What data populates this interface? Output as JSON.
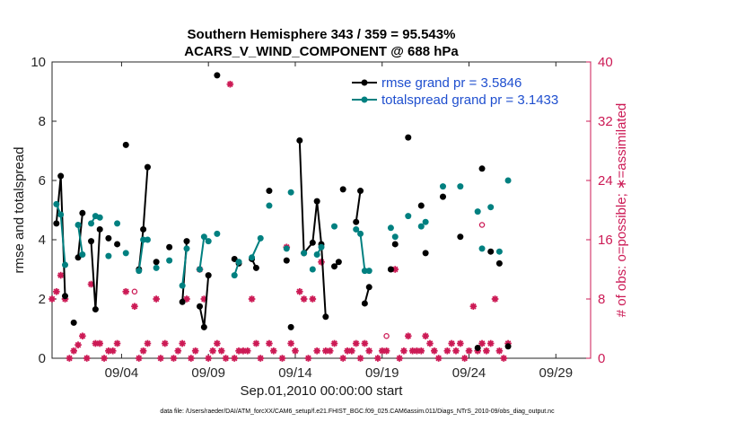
{
  "chart_data": {
    "type": "scatter",
    "title": [
      "Southern Hemisphere 343 / 359 = 95.543%",
      "ACARS_V_WIND_COMPONENT @ 688 hPa"
    ],
    "xlabel": "Sep.01,2010 00:00:00 start",
    "ylabel_left": "rmse and totalspread",
    "ylabel_right": "# of obs: o=possible; ∗=assimilated",
    "footer": "data file: /Users/raeder/DAI/ATM_forcXX/CAM6_setup/f.e21.FHIST_BGC.f09_025.CAM6assim.011/Diags_NTrS_2010-09/obs_diag_output.nc",
    "xlim": [
      0,
      31
    ],
    "ylim_left": [
      0,
      10
    ],
    "ylim_right": [
      0,
      40
    ],
    "x_ticks": [
      {
        "value": 4,
        "label": "09/04"
      },
      {
        "value": 9,
        "label": "09/09"
      },
      {
        "value": 14,
        "label": "09/14"
      },
      {
        "value": 19,
        "label": "09/19"
      },
      {
        "value": 24,
        "label": "09/24"
      },
      {
        "value": 29,
        "label": "09/29"
      }
    ],
    "y_left_ticks": [
      "0",
      "2",
      "4",
      "6",
      "8",
      "10"
    ],
    "y_left_tick_values": [
      0,
      2,
      4,
      6,
      8,
      10
    ],
    "y_right_ticks": [
      "0",
      "8",
      "16",
      "24",
      "32",
      "40"
    ],
    "y_right_tick_values": [
      0,
      8,
      16,
      24,
      32,
      40
    ],
    "legend": [
      {
        "label": "rmse grand pr = 3.5846",
        "color": "#000000"
      },
      {
        "label": "totalspread grand pr = 3.1433",
        "color": "#008080"
      }
    ],
    "legend_text_color": "#1f4fcf",
    "right_axis_color": "#cc1a55",
    "series": [
      {
        "name": "rmse",
        "color": "#000000",
        "style": "line-markers",
        "points": [
          [
            0.25,
            4.55
          ],
          [
            0.5,
            6.15
          ],
          [
            0.75,
            2.1
          ],
          [
            1.25,
            1.2
          ],
          [
            1.5,
            3.4
          ],
          [
            1.75,
            4.9
          ],
          [
            2.25,
            3.95
          ],
          [
            2.5,
            1.65
          ],
          [
            2.75,
            4.35
          ],
          [
            3.25,
            4.05
          ],
          [
            3.75,
            3.85
          ],
          [
            4.25,
            7.2
          ],
          [
            5,
            3.0
          ],
          [
            5.25,
            4.35
          ],
          [
            5.5,
            6.45
          ],
          [
            6,
            3.25
          ],
          [
            6.75,
            3.75
          ],
          [
            7.5,
            1.9
          ],
          [
            7.75,
            3.95
          ],
          [
            8.5,
            1.75
          ],
          [
            8.75,
            1.05
          ],
          [
            9,
            2.8
          ],
          [
            9.5,
            9.55
          ],
          [
            10.5,
            3.35
          ],
          [
            10.75,
            3.2
          ],
          [
            11.5,
            3.35
          ],
          [
            11.75,
            3.05
          ],
          [
            12.5,
            5.65
          ],
          [
            13.5,
            3.3
          ],
          [
            13.75,
            1.05
          ],
          [
            14.25,
            7.35
          ],
          [
            14.5,
            3.55
          ],
          [
            15,
            3.9
          ],
          [
            15.25,
            5.3
          ],
          [
            15.5,
            3.85
          ],
          [
            15.75,
            1.4
          ],
          [
            16.25,
            3.1
          ],
          [
            16.5,
            3.25
          ],
          [
            16.75,
            5.7
          ],
          [
            17.5,
            4.6
          ],
          [
            17.75,
            5.65
          ],
          [
            18,
            1.85
          ],
          [
            18.25,
            2.4
          ],
          [
            19.5,
            3.0
          ],
          [
            19.75,
            3.85
          ],
          [
            20.5,
            7.45
          ],
          [
            21.25,
            5.15
          ],
          [
            21.5,
            3.55
          ],
          [
            22.5,
            5.45
          ],
          [
            23.5,
            4.1
          ],
          [
            24.5,
            0.35
          ],
          [
            24.75,
            6.4
          ],
          [
            25.25,
            3.6
          ],
          [
            25.75,
            3.2
          ],
          [
            26.25,
            0.4
          ]
        ],
        "segments": [
          [
            0,
            1,
            2
          ],
          [
            4,
            5
          ],
          [
            6,
            7,
            8
          ],
          [
            11
          ],
          [
            12,
            13,
            14
          ],
          [
            17,
            18
          ],
          [
            19,
            20,
            21
          ],
          [
            23,
            24
          ],
          [
            25,
            26
          ],
          [
            30,
            31,
            32,
            33,
            34,
            35
          ],
          [
            36,
            37
          ],
          [
            39,
            40
          ],
          [
            41,
            42
          ]
        ]
      },
      {
        "name": "totalspread",
        "color": "#008080",
        "style": "line-markers",
        "points": [
          [
            0.25,
            5.2
          ],
          [
            0.5,
            4.85
          ],
          [
            0.75,
            3.15
          ],
          [
            1.5,
            4.5
          ],
          [
            1.75,
            3.5
          ],
          [
            2.25,
            4.55
          ],
          [
            2.5,
            4.8
          ],
          [
            2.75,
            4.75
          ],
          [
            3.25,
            3.45
          ],
          [
            3.75,
            4.55
          ],
          [
            4.25,
            3.55
          ],
          [
            5,
            2.95
          ],
          [
            5.25,
            4.0
          ],
          [
            5.5,
            4.0
          ],
          [
            6,
            3.05
          ],
          [
            6.75,
            3.3
          ],
          [
            7.5,
            2.45
          ],
          [
            7.75,
            3.7
          ],
          [
            8.5,
            3.0
          ],
          [
            8.75,
            4.1
          ],
          [
            9,
            3.95
          ],
          [
            9.5,
            4.2
          ],
          [
            10.5,
            2.8
          ],
          [
            10.75,
            3.25
          ],
          [
            11.5,
            3.4
          ],
          [
            12,
            4.05
          ],
          [
            12.5,
            5.15
          ],
          [
            13.5,
            3.7
          ],
          [
            13.75,
            5.6
          ],
          [
            14.5,
            3.55
          ],
          [
            15,
            3.0
          ],
          [
            15.25,
            3.5
          ],
          [
            15.5,
            3.75
          ],
          [
            16.25,
            4.45
          ],
          [
            17.5,
            4.35
          ],
          [
            17.75,
            4.2
          ],
          [
            18,
            2.95
          ],
          [
            18.25,
            2.95
          ],
          [
            19.5,
            4.4
          ],
          [
            19.75,
            4.1
          ],
          [
            20.5,
            4.8
          ],
          [
            21.25,
            4.45
          ],
          [
            21.5,
            4.6
          ],
          [
            22.5,
            5.8
          ],
          [
            23.5,
            5.8
          ],
          [
            24.5,
            4.95
          ],
          [
            24.75,
            3.7
          ],
          [
            25.25,
            5.1
          ],
          [
            25.75,
            3.6
          ],
          [
            26.25,
            6.0
          ]
        ],
        "segments": [
          [
            0,
            1,
            2
          ],
          [
            3,
            4
          ],
          [
            5,
            6,
            7
          ],
          [
            11,
            12,
            13
          ],
          [
            16,
            17
          ],
          [
            18,
            19,
            20
          ],
          [
            22,
            23
          ],
          [
            24,
            25
          ],
          [
            31,
            32
          ],
          [
            34,
            35,
            36
          ]
        ]
      },
      {
        "name": "obs assimilated",
        "color": "#cc1a55",
        "marker": "*",
        "axis": "right",
        "points": [
          [
            0,
            8.0
          ],
          [
            0.25,
            9.0
          ],
          [
            0.5,
            11.2
          ],
          [
            0.75,
            8.0
          ],
          [
            1.0,
            0.0
          ],
          [
            1.25,
            1.0
          ],
          [
            1.5,
            1.8
          ],
          [
            1.75,
            3.0
          ],
          [
            2.0,
            0.0
          ],
          [
            2.25,
            10.0
          ],
          [
            2.5,
            2.0
          ],
          [
            2.75,
            2.0
          ],
          [
            3.0,
            0.0
          ],
          [
            3.25,
            1.0
          ],
          [
            3.5,
            1.0
          ],
          [
            3.75,
            2.0
          ],
          [
            4.25,
            9.0
          ],
          [
            4.75,
            7.0
          ],
          [
            5,
            0.0
          ],
          [
            5.25,
            1.0
          ],
          [
            5.5,
            2.0
          ],
          [
            6,
            8.0
          ],
          [
            6.25,
            0.0
          ],
          [
            6.5,
            2.0
          ],
          [
            7.0,
            0.0
          ],
          [
            7.25,
            1.0
          ],
          [
            7.5,
            2.0
          ],
          [
            7.75,
            8.0
          ],
          [
            8,
            0.0
          ],
          [
            8.25,
            1.0
          ],
          [
            8.5,
            12.0
          ],
          [
            8.75,
            8.0
          ],
          [
            9,
            0.0
          ],
          [
            9.25,
            1.0
          ],
          [
            9.5,
            2.0
          ],
          [
            9.75,
            1.0
          ],
          [
            10,
            0.0
          ],
          [
            10.25,
            37.0
          ],
          [
            10.5,
            0.0
          ],
          [
            10.75,
            1.0
          ],
          [
            11,
            1.0
          ],
          [
            11.25,
            1.0
          ],
          [
            11.5,
            8.0
          ],
          [
            11.75,
            2.0
          ],
          [
            12,
            0.0
          ],
          [
            12.5,
            2.0
          ],
          [
            12.75,
            1.0
          ],
          [
            13.25,
            0.0
          ],
          [
            13.5,
            15.0
          ],
          [
            13.75,
            2.0
          ],
          [
            14,
            1.0
          ],
          [
            14.25,
            9.0
          ],
          [
            14.5,
            8.0
          ],
          [
            14.75,
            0.0
          ],
          [
            15,
            8.0
          ],
          [
            15.25,
            1.0
          ],
          [
            15.5,
            13.0
          ],
          [
            15.75,
            1.0
          ],
          [
            16,
            1.0
          ],
          [
            16.25,
            2.0
          ],
          [
            16.75,
            0.0
          ],
          [
            17,
            1.0
          ],
          [
            17.25,
            1.0
          ],
          [
            17.5,
            2.0
          ],
          [
            17.75,
            0.0
          ],
          [
            18,
            2.0
          ],
          [
            18.25,
            1.0
          ],
          [
            18.75,
            0.0
          ],
          [
            19,
            1.0
          ],
          [
            19.25,
            1.0
          ],
          [
            19.75,
            12.0
          ],
          [
            20,
            0.0
          ],
          [
            20.25,
            1.0
          ],
          [
            20.5,
            3.0
          ],
          [
            20.75,
            1.0
          ],
          [
            21,
            1.0
          ],
          [
            21.25,
            1.0
          ],
          [
            21.5,
            3.0
          ],
          [
            21.75,
            2.0
          ],
          [
            22,
            1.0
          ],
          [
            22.25,
            0.0
          ],
          [
            22.75,
            1.0
          ],
          [
            23.0,
            2.0
          ],
          [
            23.25,
            1.0
          ],
          [
            23.5,
            2.0
          ],
          [
            23.75,
            0.0
          ],
          [
            24,
            1.0
          ],
          [
            24.25,
            7.0
          ],
          [
            24.5,
            1.0
          ],
          [
            24.75,
            2.0
          ],
          [
            25,
            1.0
          ],
          [
            25.25,
            2.0
          ],
          [
            25.5,
            8.0
          ],
          [
            25.75,
            1.0
          ],
          [
            26,
            0.0
          ],
          [
            26.25,
            2.0
          ]
        ]
      },
      {
        "name": "obs possible",
        "color": "#cc1a55",
        "marker": "o",
        "axis": "right",
        "points": [
          [
            4.75,
            9.0
          ],
          [
            19.25,
            3.0
          ],
          [
            24.75,
            18.0
          ]
        ]
      }
    ]
  }
}
